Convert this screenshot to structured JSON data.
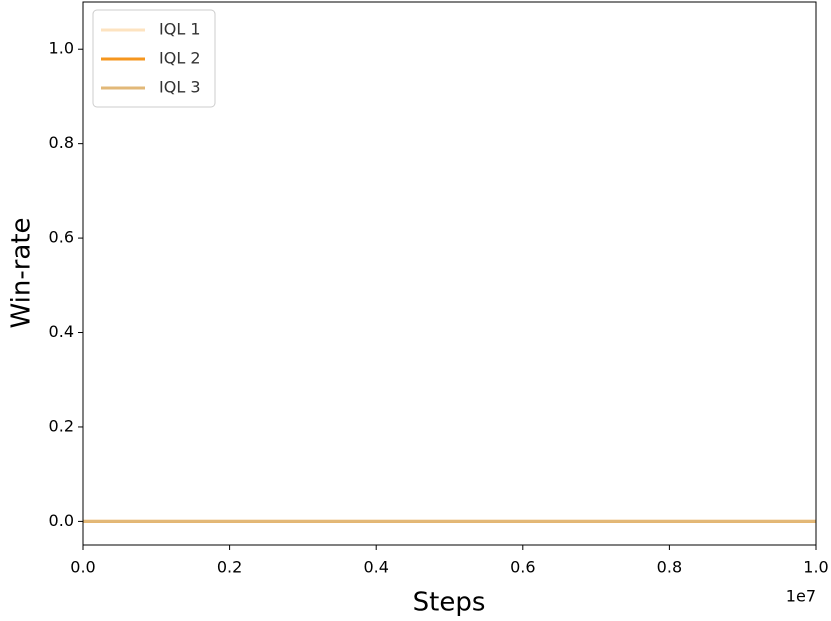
{
  "chart_data": {
    "type": "line",
    "xlabel": "Steps",
    "ylabel": "Win-rate",
    "x_offset_label": "1e7",
    "x": [
      0,
      1
    ],
    "series": [
      {
        "name": "IQL 1",
        "color": "#fde3c0",
        "values": [
          0,
          0
        ]
      },
      {
        "name": "IQL 2",
        "color": "#f5961e",
        "values": [
          0,
          0
        ]
      },
      {
        "name": "IQL 3",
        "color": "#e2b878",
        "values": [
          0,
          0
        ]
      }
    ],
    "xlim": [
      0,
      1
    ],
    "ylim": [
      -0.05,
      1.1
    ],
    "xticks": [
      {
        "value": 0,
        "label": "0.0"
      },
      0.2,
      0.4,
      0.6,
      0.8,
      {
        "value": 1,
        "label": "1.0"
      }
    ],
    "yticks": [
      {
        "value": 0,
        "label": "0.0"
      },
      0.2,
      0.4,
      0.6,
      0.8,
      {
        "value": 1,
        "label": "1.0"
      }
    ],
    "grid": false,
    "legend": "upper left"
  }
}
